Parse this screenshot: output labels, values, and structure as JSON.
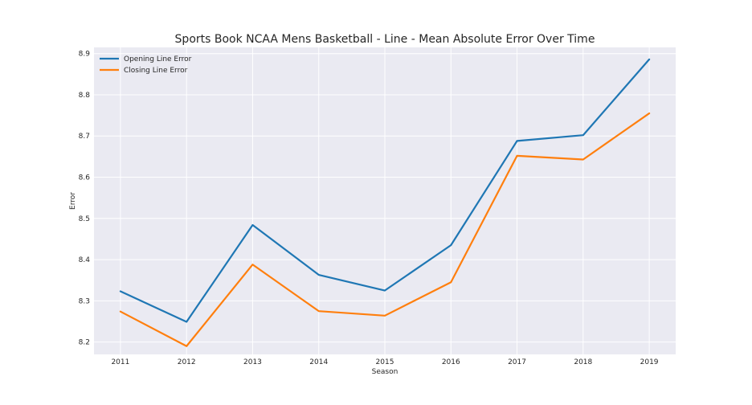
{
  "chart_data": {
    "type": "line",
    "title": "Sports Book NCAA Mens Basketball - Line - Mean Absolute Error Over Time",
    "xlabel": "Season",
    "ylabel": "Error",
    "x": [
      "2011",
      "2012",
      "2013",
      "2014",
      "2015",
      "2016",
      "2017",
      "2018",
      "2019"
    ],
    "xlim": [
      2010.6,
      2019.4
    ],
    "ylim": [
      8.17,
      8.915
    ],
    "yticks": [
      "8.2",
      "8.3",
      "8.4",
      "8.5",
      "8.6",
      "8.7",
      "8.8",
      "8.9"
    ],
    "grid": true,
    "legend_position": "top-left",
    "series": [
      {
        "name": "Opening Line Error",
        "color": "#1f77b4",
        "values": [
          8.323,
          8.249,
          8.484,
          8.363,
          8.325,
          8.435,
          8.688,
          8.702,
          8.886
        ]
      },
      {
        "name": "Closing Line Error",
        "color": "#ff7f0e",
        "values": [
          8.274,
          8.19,
          8.388,
          8.275,
          8.264,
          8.345,
          8.652,
          8.643,
          8.755
        ]
      }
    ],
    "colors": {
      "background": "#eaeaf2",
      "grid": "#ffffff",
      "text": "#262626"
    }
  }
}
